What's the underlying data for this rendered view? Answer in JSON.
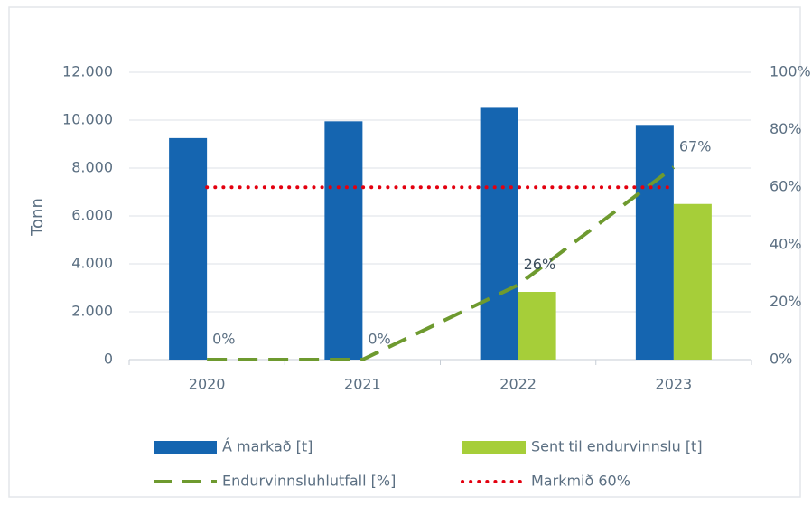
{
  "chart_data": {
    "type": "bar",
    "y_label": "Tonn",
    "categories": [
      "2020",
      "2021",
      "2022",
      "2023"
    ],
    "ylim": [
      0,
      12000
    ],
    "yticks": [
      0,
      {
        "value": 2000,
        "label": "2.000"
      },
      {
        "value": 4000,
        "label": "4.000"
      },
      {
        "value": 6000,
        "label": "6.000"
      },
      {
        "value": 8000,
        "label": "8.000"
      },
      {
        "value": 10000,
        "label": "10.000"
      },
      {
        "value": 12000,
        "label": "12.000"
      }
    ],
    "y2lim": [
      0,
      100
    ],
    "y2ticks": [
      {
        "value": 0,
        "label": "0%"
      },
      {
        "value": 20,
        "label": "20%"
      },
      {
        "value": 40,
        "label": "40%"
      },
      {
        "value": 60,
        "label": "60%"
      },
      {
        "value": 80,
        "label": "80%"
      },
      {
        "value": 100,
        "label": "100%"
      }
    ],
    "grid": true,
    "series": [
      {
        "name": "Á markað [t]",
        "type": "bar",
        "color": "#1565b0",
        "values": [
          9250,
          9950,
          10550,
          9800
        ]
      },
      {
        "name": "Sent til endurvinnslu [t]",
        "type": "bar",
        "color": "#a6ce39",
        "values": [
          null,
          null,
          2830,
          6500
        ]
      },
      {
        "name": "Endurvinnsluhlutfall [%]",
        "type": "dashed",
        "axis": "y2",
        "color": "#6e9a2f",
        "values": [
          0,
          0,
          26,
          67
        ],
        "value_labels": [
          "0%",
          "0%",
          "26%",
          "67%"
        ]
      },
      {
        "name": "Markmið 60%",
        "type": "dotted",
        "axis": "y2",
        "color": "#e3000f",
        "values": [
          60,
          60,
          60,
          60
        ]
      }
    ],
    "legend": "bottom"
  }
}
